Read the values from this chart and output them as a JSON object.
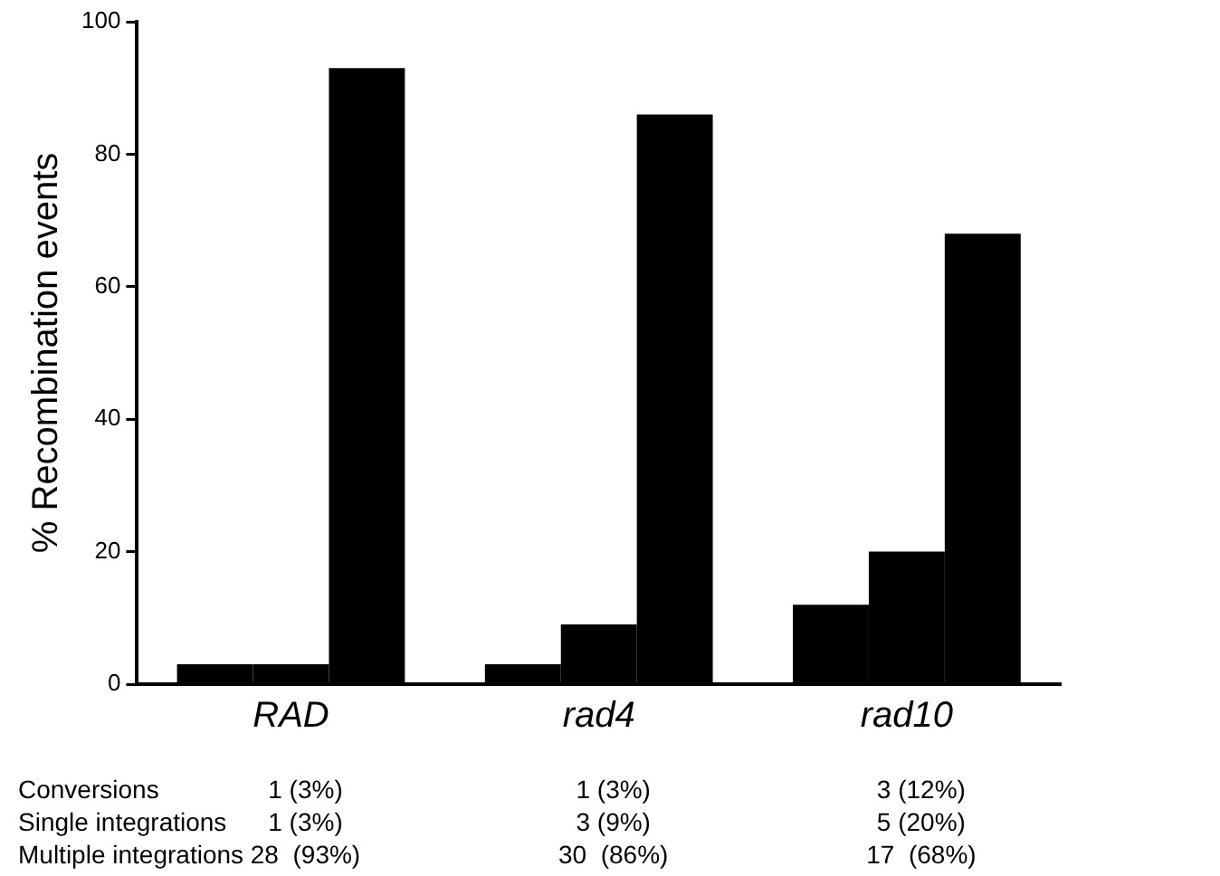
{
  "chart_data": {
    "type": "bar",
    "ylabel": "% Recombination events",
    "categories": [
      "RAD",
      "rad4",
      "rad10"
    ],
    "series": [
      {
        "color": "#000000",
        "values": [
          3,
          3,
          12
        ],
        "value_labels": [
          "1 (3%)",
          "1 (3%)",
          "3 (12%)"
        ]
      },
      {
        "color": "#000000",
        "values": [
          3,
          9,
          20
        ],
        "value_labels": [
          "1 (3%)",
          "3 (9%)",
          "5 (20%)"
        ]
      },
      {
        "color": "#000000",
        "values": [
          93,
          86,
          68
        ],
        "value_labels": [
          "28  (93%)",
          "30  (86%)",
          "17  (68%)"
        ]
      }
    ],
    "annotations": [
      "Conversions",
      "Single integrations",
      "Multiple integrations"
    ],
    "ylim": [
      0,
      100
    ],
    "yticks": [
      0,
      20,
      40,
      60,
      80,
      100
    ],
    "grid": false,
    "legend": false
  }
}
